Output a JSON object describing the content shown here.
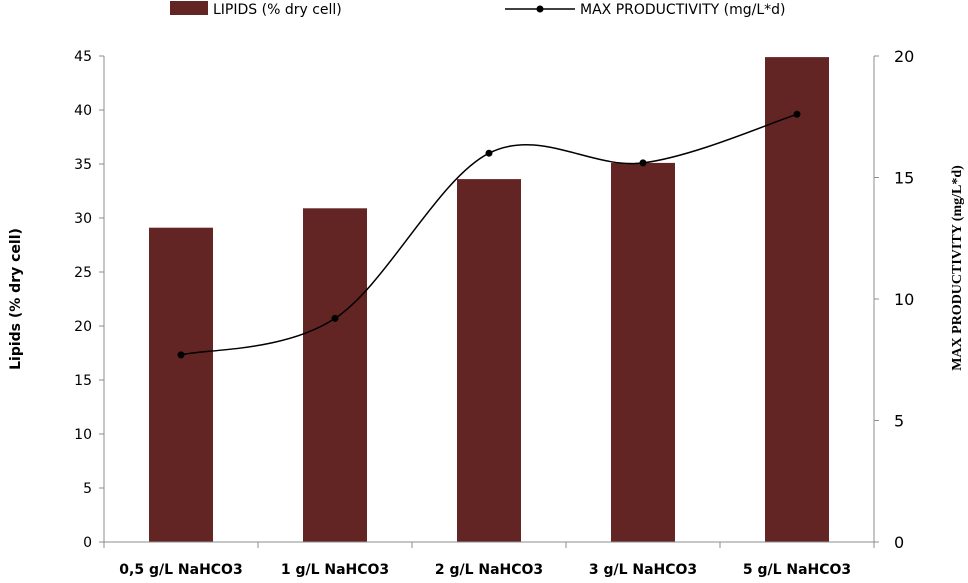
{
  "chart_data": {
    "type": "bar",
    "title": "",
    "categories": [
      "0,5 g/L NaHCO3",
      "1 g/L NaHCO3",
      "2 g/L NaHCO3",
      "3 g/L NaHCO3",
      "5 g/L NaHCO3"
    ],
    "series": [
      {
        "name": "LIPIDS (% dry cell)",
        "type": "bar",
        "axis": "left",
        "color": "#632523",
        "values": [
          29.1,
          30.9,
          33.6,
          35.1,
          44.9
        ]
      },
      {
        "name": "MAX PRODUCTIVITY (mg/L*d)",
        "type": "line",
        "smooth": true,
        "axis": "right",
        "color": "#000000",
        "values": [
          7.7,
          9.2,
          16.0,
          15.6,
          17.6
        ]
      }
    ],
    "ylabel": "Lipids (% dry cell)",
    "y2label": "MAX PRODUCTIVITY (mg/L*d)",
    "ylim": [
      0,
      45
    ],
    "y2lim": [
      0,
      20
    ],
    "yticks": [
      "0",
      "5",
      "10",
      "15",
      "20",
      "25",
      "30",
      "35",
      "40",
      "45"
    ],
    "y2ticks": [
      "0",
      "5",
      "10",
      "15",
      "20"
    ],
    "grid": false,
    "legend_position": "top"
  }
}
